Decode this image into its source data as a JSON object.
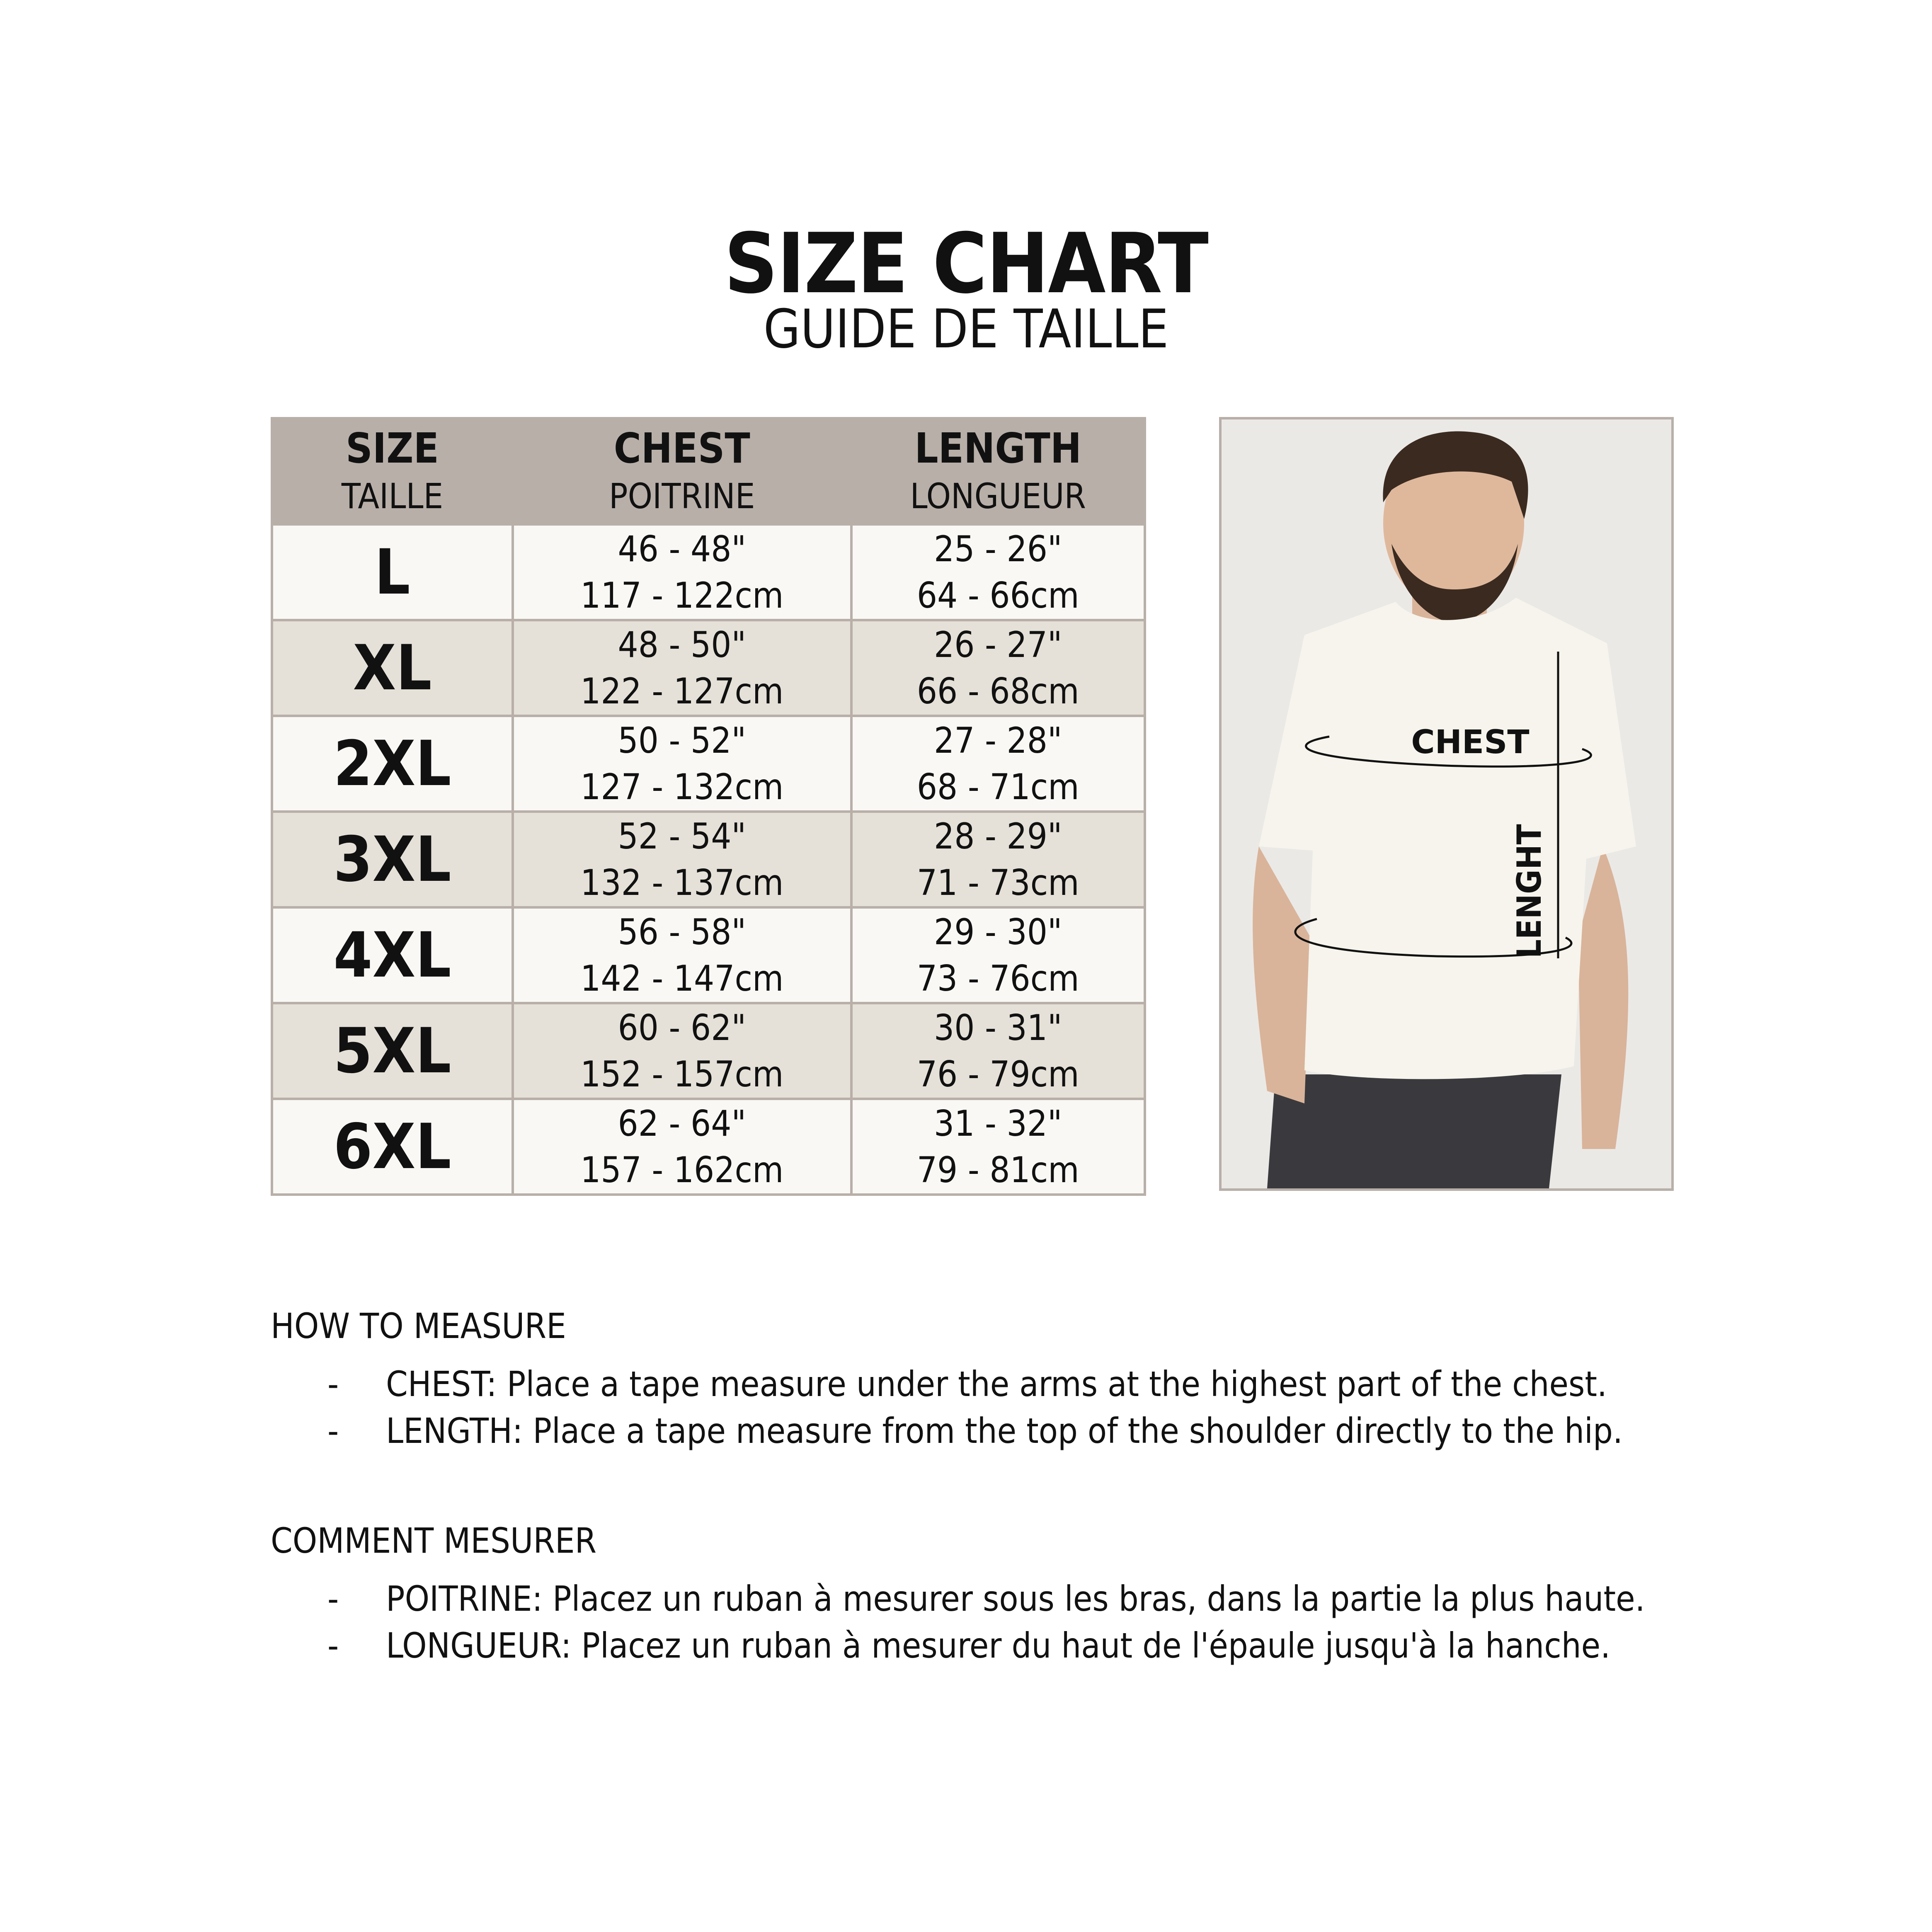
{
  "title": "SIZE CHART",
  "subtitle": "GUIDE DE TAILLE",
  "colors": {
    "header_bg": "#b8afa9",
    "row_light": "#f9f8f5",
    "row_dark": "#e5e1d8",
    "border": "#b8afa9"
  },
  "table": {
    "headers": [
      {
        "en": "SIZE",
        "fr": "TAILLE"
      },
      {
        "en": "CHEST",
        "fr": "POITRINE"
      },
      {
        "en": "LENGTH",
        "fr": "LONGUEUR"
      }
    ],
    "rows": [
      {
        "size": "L",
        "chest_in": "46 - 48\"",
        "chest_cm": "117 - 122cm",
        "length_in": "25 - 26\"",
        "length_cm": "64 - 66cm"
      },
      {
        "size": "XL",
        "chest_in": "48 - 50\"",
        "chest_cm": "122 - 127cm",
        "length_in": "26 - 27\"",
        "length_cm": "66 - 68cm"
      },
      {
        "size": "2XL",
        "chest_in": "50 - 52\"",
        "chest_cm": "127 - 132cm",
        "length_in": "27 - 28\"",
        "length_cm": "68 - 71cm"
      },
      {
        "size": "3XL",
        "chest_in": "52 - 54\"",
        "chest_cm": "132 - 137cm",
        "length_in": "28 - 29\"",
        "length_cm": "71 - 73cm"
      },
      {
        "size": "4XL",
        "chest_in": "56 - 58\"",
        "chest_cm": "142 - 147cm",
        "length_in": "29 - 30\"",
        "length_cm": "73 - 76cm"
      },
      {
        "size": "5XL",
        "chest_in": "60 - 62\"",
        "chest_cm": "152 - 157cm",
        "length_in": "30 - 31\"",
        "length_cm": "76 - 79cm"
      },
      {
        "size": "6XL",
        "chest_in": "62 - 64\"",
        "chest_cm": "157 - 162cm",
        "length_in": "31 - 32\"",
        "length_cm": "79 - 81cm"
      }
    ]
  },
  "photo": {
    "chest_label": "CHEST",
    "length_label": "LENGHT"
  },
  "how_to_measure": {
    "heading": "HOW TO MEASURE",
    "items": [
      "CHEST: Place a tape measure under the arms at the highest part of the chest.",
      "LENGTH: Place a tape measure from the top of the shoulder directly to the hip."
    ]
  },
  "comment_mesurer": {
    "heading": "COMMENT MESURER",
    "items": [
      "POITRINE: Placez un ruban à mesurer sous les bras, dans la partie la plus haute.",
      "LONGUEUR: Placez un ruban à mesurer du haut de l'épaule jusqu'à la hanche."
    ]
  },
  "bullet": "-"
}
